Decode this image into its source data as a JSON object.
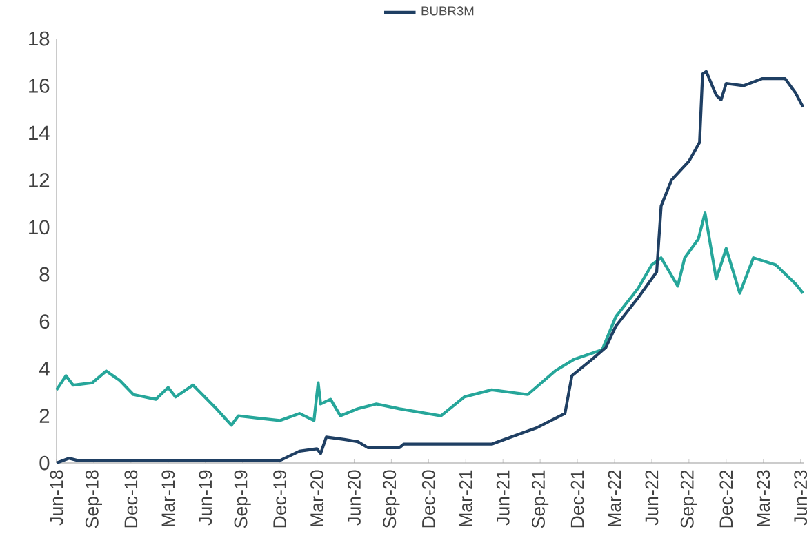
{
  "chart_data": {
    "type": "line",
    "legend": "top",
    "xlim": [
      "2018-06-01",
      "2023-06-10"
    ],
    "ylim": [
      0,
      18
    ],
    "yticks": [
      0,
      2,
      4,
      6,
      8,
      10,
      12,
      14,
      16,
      18
    ],
    "xticks": [
      {
        "value": "2018-06-01",
        "label": "Jun-18"
      },
      {
        "value": "2018-09-01",
        "label": "Sep-18"
      },
      {
        "value": "2018-12-01",
        "label": "Dec-18"
      },
      {
        "value": "2019-03-01",
        "label": "Mar-19"
      },
      {
        "value": "2019-06-01",
        "label": "Jun-19"
      },
      {
        "value": "2019-09-01",
        "label": "Sep-19"
      },
      {
        "value": "2019-12-01",
        "label": "Dec-19"
      },
      {
        "value": "2020-03-01",
        "label": "Mar-20"
      },
      {
        "value": "2020-06-01",
        "label": "Jun-20"
      },
      {
        "value": "2020-09-01",
        "label": "Sep-20"
      },
      {
        "value": "2020-12-01",
        "label": "Dec-20"
      },
      {
        "value": "2021-03-01",
        "label": "Mar-21"
      },
      {
        "value": "2021-06-01",
        "label": "Jun-21"
      },
      {
        "value": "2021-09-01",
        "label": "Sep-21"
      },
      {
        "value": "2021-12-01",
        "label": "Dec-21"
      },
      {
        "value": "2022-03-01",
        "label": "Mar-22"
      },
      {
        "value": "2022-06-01",
        "label": "Jun-22"
      },
      {
        "value": "2022-09-01",
        "label": "Sep-22"
      },
      {
        "value": "2022-12-01",
        "label": "Dec-22"
      },
      {
        "value": "2023-03-01",
        "label": "Mar-23"
      },
      {
        "value": "2023-06-01",
        "label": "Jun-23"
      }
    ],
    "series": [
      {
        "color": "#26a69a",
        "x": [
          "2018-06-01",
          "2018-06-24",
          "2018-07-11",
          "2018-08-28",
          "2018-10-01",
          "2018-11-04",
          "2018-12-07",
          "2019-02-01",
          "2019-03-01",
          "2019-03-19",
          "2019-05-01",
          "2019-06-28",
          "2019-08-04",
          "2019-08-21",
          "2019-10-07",
          "2019-12-01",
          "2020-01-19",
          "2020-02-24",
          "2020-03-04",
          "2020-03-10",
          "2020-04-04",
          "2020-04-28",
          "2020-06-10",
          "2020-07-25",
          "2020-09-21",
          "2021-01-01",
          "2021-02-28",
          "2021-05-04",
          "2021-08-01",
          "2021-10-07",
          "2021-11-24",
          "2022-02-01",
          "2022-03-04",
          "2022-04-28",
          "2022-06-01",
          "2022-06-24",
          "2022-08-04",
          "2022-08-21",
          "2022-09-24",
          "2022-10-10",
          "2022-11-07",
          "2022-12-01",
          "2023-01-04",
          "2023-02-07",
          "2023-04-01",
          "2023-05-19",
          "2023-06-07"
        ],
        "values": [
          3.1,
          3.7,
          3.3,
          3.4,
          3.9,
          3.5,
          2.9,
          2.7,
          3.2,
          2.8,
          3.3,
          2.3,
          1.6,
          2.0,
          1.9,
          1.8,
          2.1,
          1.8,
          3.4,
          2.5,
          2.7,
          2.0,
          2.3,
          2.5,
          2.3,
          2.0,
          2.8,
          3.1,
          2.9,
          3.9,
          4.4,
          4.8,
          6.2,
          7.4,
          8.4,
          8.7,
          7.5,
          8.7,
          9.5,
          10.6,
          7.8,
          9.1,
          7.2,
          8.7,
          8.4,
          7.6,
          7.2
        ]
      },
      {
        "name": "BUBR3M",
        "color": "#1f3f63",
        "x": [
          "2018-06-01",
          "2018-07-01",
          "2018-07-24",
          "2019-12-01",
          "2020-01-19",
          "2020-03-01",
          "2020-03-10",
          "2020-03-24",
          "2020-05-07",
          "2020-06-10",
          "2020-07-04",
          "2020-09-21",
          "2020-10-01",
          "2021-05-04",
          "2021-08-24",
          "2021-11-01",
          "2021-11-18",
          "2022-01-07",
          "2022-02-10",
          "2022-03-04",
          "2022-04-28",
          "2022-06-13",
          "2022-06-24",
          "2022-07-19",
          "2022-09-01",
          "2022-09-27",
          "2022-10-04",
          "2022-10-13",
          "2022-11-07",
          "2022-11-19",
          "2022-12-01",
          "2023-01-13",
          "2023-02-28",
          "2023-04-24",
          "2023-05-19",
          "2023-06-07"
        ],
        "values": [
          0.0,
          0.2,
          0.1,
          0.1,
          0.5,
          0.6,
          0.4,
          1.1,
          1.0,
          0.9,
          0.65,
          0.65,
          0.8,
          0.8,
          1.5,
          2.1,
          3.7,
          4.4,
          4.9,
          5.8,
          7.0,
          8.1,
          10.9,
          12.0,
          12.8,
          13.6,
          16.5,
          16.6,
          15.6,
          15.4,
          16.1,
          16.0,
          16.3,
          16.3,
          15.7,
          15.1
        ]
      }
    ]
  }
}
